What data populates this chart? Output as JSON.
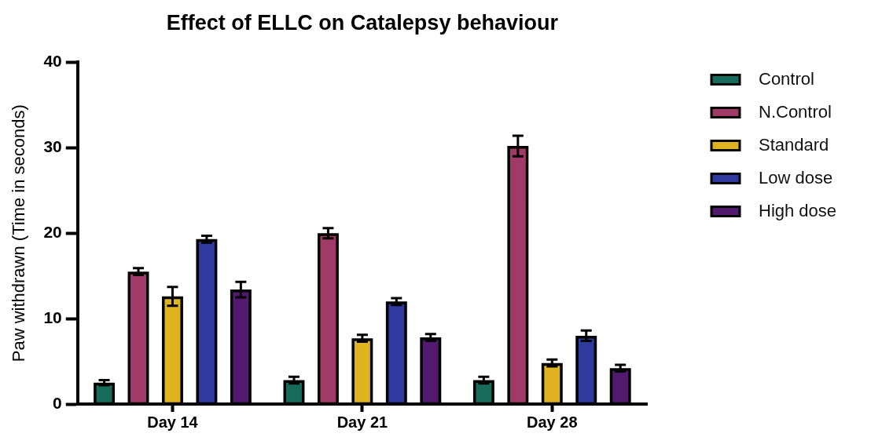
{
  "chart_data": {
    "type": "bar",
    "title": "Effect of ELLC on Catalepsy behaviour",
    "ylabel": "Paw withdrawn (Time in seconds)",
    "categories": [
      "Day 14",
      "Day 21",
      "Day 28"
    ],
    "ylim": [
      0,
      40
    ],
    "yticks": [
      0,
      10,
      20,
      30,
      40
    ],
    "legend": "top right",
    "series": [
      {
        "name": "Control",
        "color": "#176b5b",
        "values": [
          2.5,
          2.8,
          2.8
        ],
        "errors": [
          0.3,
          0.4,
          0.4
        ]
      },
      {
        "name": "N.Control",
        "color": "#a03a66",
        "values": [
          15.5,
          20.0,
          30.2
        ],
        "errors": [
          0.4,
          0.6,
          1.2
        ]
      },
      {
        "name": "Standard",
        "color": "#e0b420",
        "values": [
          12.6,
          7.7,
          4.8
        ],
        "errors": [
          1.1,
          0.4,
          0.4
        ]
      },
      {
        "name": "Low dose",
        "color": "#2e3a9e",
        "values": [
          19.3,
          12.0,
          8.0
        ],
        "errors": [
          0.4,
          0.4,
          0.6
        ]
      },
      {
        "name": "High dose",
        "color": "#521a6e",
        "values": [
          13.4,
          7.8,
          4.2
        ],
        "errors": [
          0.9,
          0.4,
          0.4
        ]
      }
    ]
  }
}
